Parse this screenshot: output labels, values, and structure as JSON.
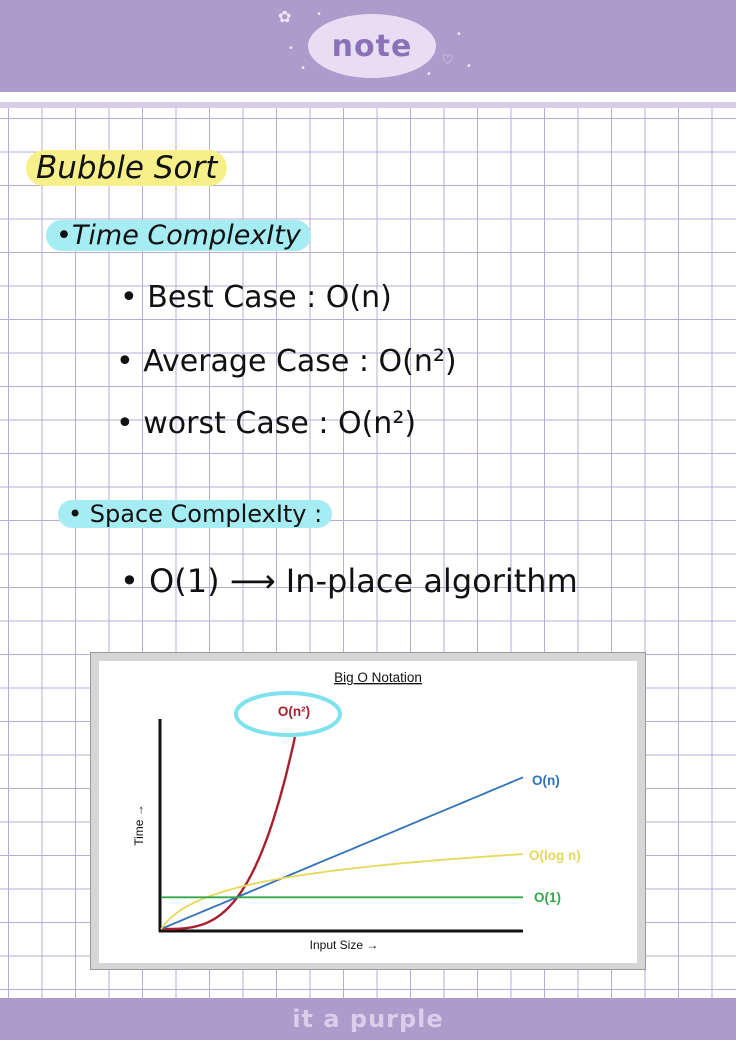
{
  "header": {
    "badge": "note"
  },
  "footer": {
    "text": "it a purple"
  },
  "notes": {
    "title": "Bubble Sort",
    "time_heading": "•Time ComplexIty",
    "time_items": [
      "• Best Case :  O(n)",
      "• Average Case : O(n²)",
      "• worst  Case  :  O(n²)"
    ],
    "space_heading": "• Space ComplexIty :",
    "space_items": [
      "• O(1)  ⟶  In-place algorithm"
    ]
  },
  "chart_data": {
    "type": "line",
    "title": "Big O Notation",
    "xlabel": "Input Size →",
    "ylabel": "Time →",
    "series": [
      {
        "name": "O(n²)",
        "color": "#a8202e"
      },
      {
        "name": "O(n)",
        "color": "#2f72b8"
      },
      {
        "name": "O(log n)",
        "color": "#e6d95a"
      },
      {
        "name": "O(1)",
        "color": "#34a84a"
      }
    ],
    "annotation_circle_color": "#7fe2ee"
  }
}
